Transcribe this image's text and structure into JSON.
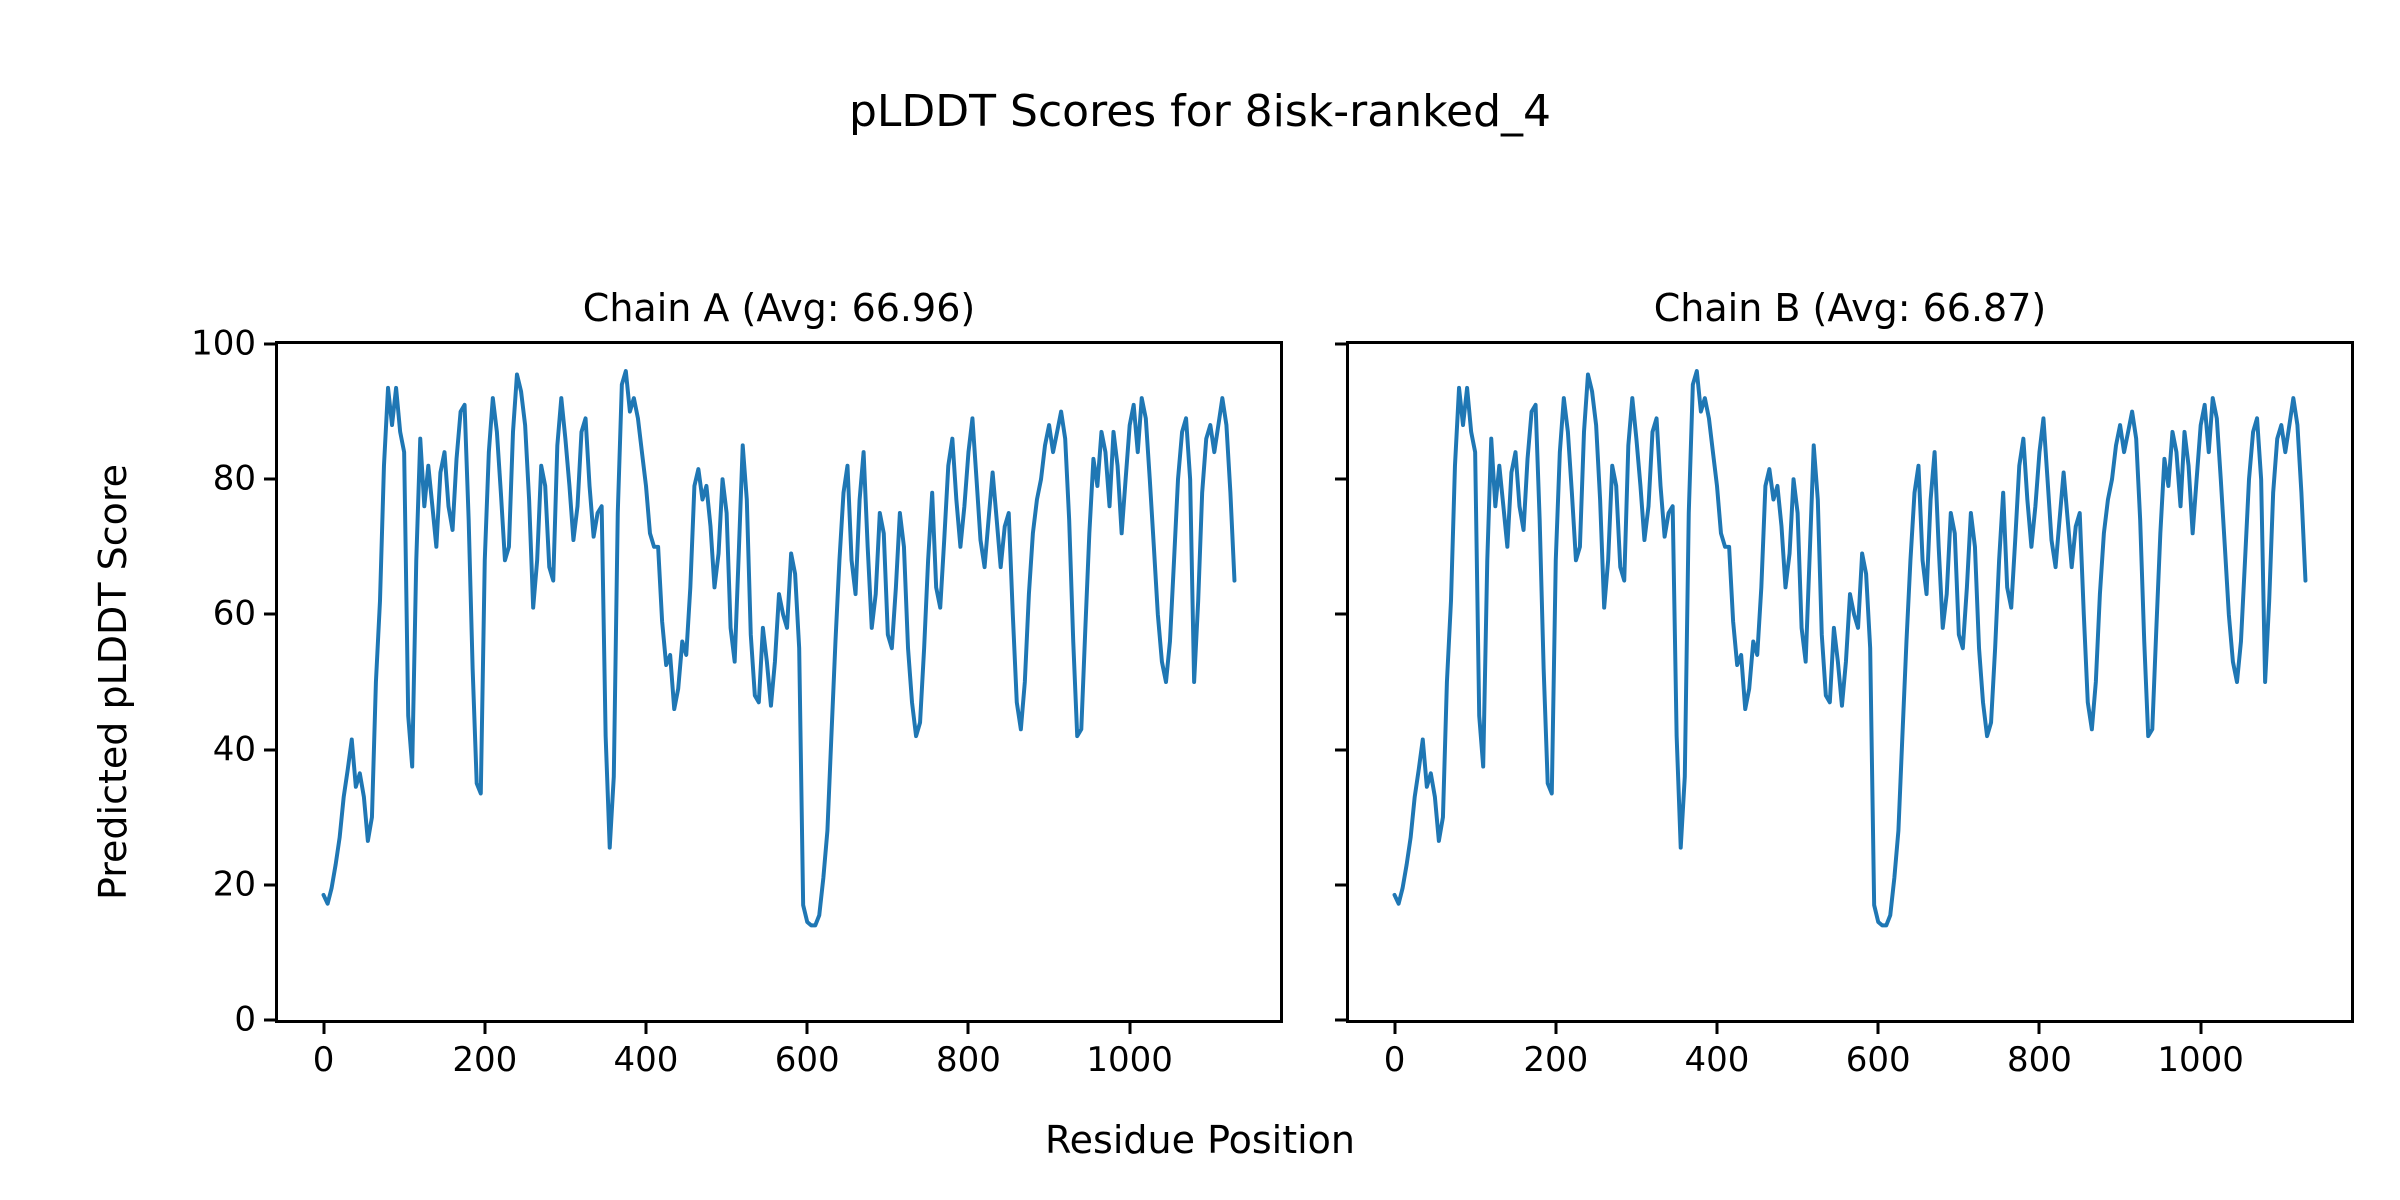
{
  "chart_data": {
    "type": "line",
    "title": "pLDDT Scores for 8isk-ranked_4",
    "xlabel": "Residue Position",
    "ylabel": "Predicted pLDDT Score",
    "line_color": "#1f77b4",
    "grid": false,
    "legend": null,
    "xlim": [
      -56.5,
      1186.5
    ],
    "ylim": [
      0,
      100
    ],
    "xticks": [
      0,
      200,
      400,
      600,
      800,
      1000
    ],
    "yticks": [
      0,
      20,
      40,
      60,
      80,
      100
    ],
    "x_start": 0,
    "x_step": 5,
    "subplots": [
      {
        "title": "Chain A (Avg: 66.96)",
        "series_name": "Chain A pLDDT",
        "avg": 66.96,
        "values": [
          18.5,
          17.2,
          19.5,
          23,
          27,
          33,
          37,
          41.5,
          34.5,
          36.5,
          33,
          26.5,
          30,
          50,
          62,
          82,
          93.5,
          88,
          93.5,
          87,
          84,
          45,
          37.5,
          68,
          86,
          76,
          82,
          76,
          70,
          81,
          84,
          76,
          72.5,
          83,
          90,
          91,
          74,
          52,
          35,
          33.5,
          68,
          84,
          92,
          87,
          78,
          68,
          70,
          87,
          95.5,
          93,
          88,
          77,
          61,
          68,
          82,
          79,
          67,
          65,
          85,
          92,
          86,
          79,
          71,
          76,
          87,
          89,
          79,
          71.5,
          75,
          76,
          42,
          25.5,
          36,
          75,
          94,
          96,
          90,
          92,
          89,
          84,
          79,
          72,
          70,
          70,
          59,
          52.5,
          54,
          46,
          49,
          56,
          54,
          64,
          79,
          81.5,
          77,
          79,
          73,
          64,
          69,
          80,
          75,
          58,
          53,
          69,
          85,
          77,
          57,
          48,
          47,
          58,
          53,
          46.5,
          53,
          63,
          60,
          58,
          69,
          66,
          55,
          17,
          14.5,
          14,
          14,
          15.5,
          21,
          28,
          42,
          56,
          68,
          78,
          82,
          68,
          63,
          77,
          84,
          70,
          58,
          63,
          75,
          72,
          57,
          55,
          64,
          75,
          70,
          55,
          47,
          42,
          44,
          55,
          68,
          78,
          64,
          61,
          71,
          82,
          86,
          77,
          70,
          76,
          84,
          89,
          80,
          71,
          67,
          74,
          81,
          74,
          67,
          73,
          75,
          60,
          47,
          43,
          50,
          63,
          72,
          77,
          80,
          85,
          88,
          84,
          87,
          90,
          86,
          74,
          56,
          42,
          43,
          58,
          72,
          83,
          79,
          87,
          84,
          76,
          87,
          82,
          72,
          80,
          88,
          91,
          84,
          92,
          89,
          80,
          70,
          60,
          53,
          50,
          56,
          68,
          80,
          87,
          89,
          80,
          50,
          62,
          78,
          86,
          88,
          84,
          88,
          92,
          88,
          78,
          65
        ]
      },
      {
        "title": "Chain B (Avg: 66.87)",
        "series_name": "Chain B pLDDT",
        "avg": 66.87,
        "values": [
          18.5,
          17.2,
          19.5,
          23,
          27,
          33,
          37,
          41.5,
          34.5,
          36.5,
          33,
          26.5,
          30,
          50,
          62,
          82,
          93.5,
          88,
          93.5,
          87,
          84,
          45,
          37.5,
          68,
          86,
          76,
          82,
          76,
          70,
          81,
          84,
          76,
          72.5,
          83,
          90,
          91,
          74,
          52,
          35,
          33.5,
          68,
          84,
          92,
          87,
          78,
          68,
          70,
          87,
          95.5,
          93,
          88,
          77,
          61,
          68,
          82,
          79,
          67,
          65,
          85,
          92,
          86,
          79,
          71,
          76,
          87,
          89,
          79,
          71.5,
          75,
          76,
          42,
          25.5,
          36,
          75,
          94,
          96,
          90,
          92,
          89,
          84,
          79,
          72,
          70,
          70,
          59,
          52.5,
          54,
          46,
          49,
          56,
          54,
          64,
          79,
          81.5,
          77,
          79,
          73,
          64,
          69,
          80,
          75,
          58,
          53,
          69,
          85,
          77,
          57,
          48,
          47,
          58,
          53,
          46.5,
          53,
          63,
          60,
          58,
          69,
          66,
          55,
          17,
          14.5,
          14,
          14,
          15.5,
          21,
          28,
          42,
          56,
          68,
          78,
          82,
          68,
          63,
          77,
          84,
          70,
          58,
          63,
          75,
          72,
          57,
          55,
          64,
          75,
          70,
          55,
          47,
          42,
          44,
          55,
          68,
          78,
          64,
          61,
          71,
          82,
          86,
          77,
          70,
          76,
          84,
          89,
          80,
          71,
          67,
          74,
          81,
          74,
          67,
          73,
          75,
          60,
          47,
          43,
          50,
          63,
          72,
          77,
          80,
          85,
          88,
          84,
          87,
          90,
          86,
          74,
          56,
          42,
          43,
          58,
          72,
          83,
          79,
          87,
          84,
          76,
          87,
          82,
          72,
          80,
          88,
          91,
          84,
          92,
          89,
          80,
          70,
          60,
          53,
          50,
          56,
          68,
          80,
          87,
          89,
          80,
          50,
          62,
          78,
          86,
          88,
          84,
          88,
          92,
          88,
          78,
          65
        ]
      }
    ]
  }
}
